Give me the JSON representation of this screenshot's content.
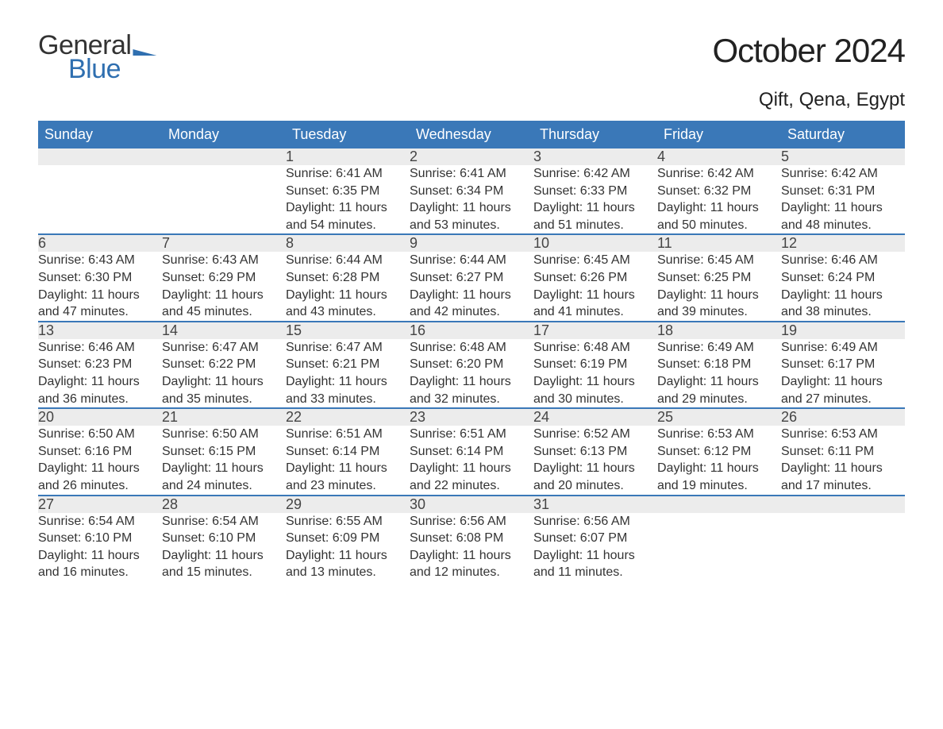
{
  "logo": {
    "text1": "General",
    "text2": "Blue"
  },
  "title": "October 2024",
  "location": "Qift, Qena, Egypt",
  "colors": {
    "brand": "#3a78b8",
    "headerBg": "#3a78b8",
    "headerText": "#ffffff",
    "dayBg": "#ececec",
    "border": "#3a78b8",
    "text": "#333333",
    "logoBlue": "#2f6fb0"
  },
  "typography": {
    "titleSize": 42,
    "locationSize": 24,
    "headerSize": 18,
    "bodySize": 16
  },
  "weekdays": [
    "Sunday",
    "Monday",
    "Tuesday",
    "Wednesday",
    "Thursday",
    "Friday",
    "Saturday"
  ],
  "labels": {
    "sunrise": "Sunrise:",
    "sunset": "Sunset:",
    "daylight": "Daylight:"
  },
  "weeks": [
    [
      null,
      null,
      {
        "n": "1",
        "rise": "6:41 AM",
        "set": "6:35 PM",
        "dl": "11 hours and 54 minutes."
      },
      {
        "n": "2",
        "rise": "6:41 AM",
        "set": "6:34 PM",
        "dl": "11 hours and 53 minutes."
      },
      {
        "n": "3",
        "rise": "6:42 AM",
        "set": "6:33 PM",
        "dl": "11 hours and 51 minutes."
      },
      {
        "n": "4",
        "rise": "6:42 AM",
        "set": "6:32 PM",
        "dl": "11 hours and 50 minutes."
      },
      {
        "n": "5",
        "rise": "6:42 AM",
        "set": "6:31 PM",
        "dl": "11 hours and 48 minutes."
      }
    ],
    [
      {
        "n": "6",
        "rise": "6:43 AM",
        "set": "6:30 PM",
        "dl": "11 hours and 47 minutes."
      },
      {
        "n": "7",
        "rise": "6:43 AM",
        "set": "6:29 PM",
        "dl": "11 hours and 45 minutes."
      },
      {
        "n": "8",
        "rise": "6:44 AM",
        "set": "6:28 PM",
        "dl": "11 hours and 43 minutes."
      },
      {
        "n": "9",
        "rise": "6:44 AM",
        "set": "6:27 PM",
        "dl": "11 hours and 42 minutes."
      },
      {
        "n": "10",
        "rise": "6:45 AM",
        "set": "6:26 PM",
        "dl": "11 hours and 41 minutes."
      },
      {
        "n": "11",
        "rise": "6:45 AM",
        "set": "6:25 PM",
        "dl": "11 hours and 39 minutes."
      },
      {
        "n": "12",
        "rise": "6:46 AM",
        "set": "6:24 PM",
        "dl": "11 hours and 38 minutes."
      }
    ],
    [
      {
        "n": "13",
        "rise": "6:46 AM",
        "set": "6:23 PM",
        "dl": "11 hours and 36 minutes."
      },
      {
        "n": "14",
        "rise": "6:47 AM",
        "set": "6:22 PM",
        "dl": "11 hours and 35 minutes."
      },
      {
        "n": "15",
        "rise": "6:47 AM",
        "set": "6:21 PM",
        "dl": "11 hours and 33 minutes."
      },
      {
        "n": "16",
        "rise": "6:48 AM",
        "set": "6:20 PM",
        "dl": "11 hours and 32 minutes."
      },
      {
        "n": "17",
        "rise": "6:48 AM",
        "set": "6:19 PM",
        "dl": "11 hours and 30 minutes."
      },
      {
        "n": "18",
        "rise": "6:49 AM",
        "set": "6:18 PM",
        "dl": "11 hours and 29 minutes."
      },
      {
        "n": "19",
        "rise": "6:49 AM",
        "set": "6:17 PM",
        "dl": "11 hours and 27 minutes."
      }
    ],
    [
      {
        "n": "20",
        "rise": "6:50 AM",
        "set": "6:16 PM",
        "dl": "11 hours and 26 minutes."
      },
      {
        "n": "21",
        "rise": "6:50 AM",
        "set": "6:15 PM",
        "dl": "11 hours and 24 minutes."
      },
      {
        "n": "22",
        "rise": "6:51 AM",
        "set": "6:14 PM",
        "dl": "11 hours and 23 minutes."
      },
      {
        "n": "23",
        "rise": "6:51 AM",
        "set": "6:14 PM",
        "dl": "11 hours and 22 minutes."
      },
      {
        "n": "24",
        "rise": "6:52 AM",
        "set": "6:13 PM",
        "dl": "11 hours and 20 minutes."
      },
      {
        "n": "25",
        "rise": "6:53 AM",
        "set": "6:12 PM",
        "dl": "11 hours and 19 minutes."
      },
      {
        "n": "26",
        "rise": "6:53 AM",
        "set": "6:11 PM",
        "dl": "11 hours and 17 minutes."
      }
    ],
    [
      {
        "n": "27",
        "rise": "6:54 AM",
        "set": "6:10 PM",
        "dl": "11 hours and 16 minutes."
      },
      {
        "n": "28",
        "rise": "6:54 AM",
        "set": "6:10 PM",
        "dl": "11 hours and 15 minutes."
      },
      {
        "n": "29",
        "rise": "6:55 AM",
        "set": "6:09 PM",
        "dl": "11 hours and 13 minutes."
      },
      {
        "n": "30",
        "rise": "6:56 AM",
        "set": "6:08 PM",
        "dl": "11 hours and 12 minutes."
      },
      {
        "n": "31",
        "rise": "6:56 AM",
        "set": "6:07 PM",
        "dl": "11 hours and 11 minutes."
      },
      null,
      null
    ]
  ]
}
